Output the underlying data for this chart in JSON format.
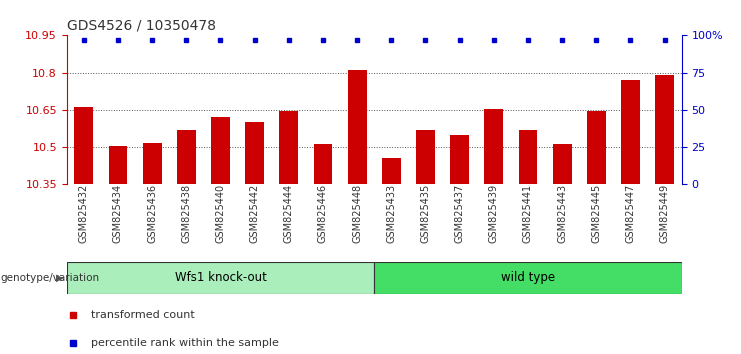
{
  "title": "GDS4526 / 10350478",
  "categories": [
    "GSM825432",
    "GSM825434",
    "GSM825436",
    "GSM825438",
    "GSM825440",
    "GSM825442",
    "GSM825444",
    "GSM825446",
    "GSM825448",
    "GSM825433",
    "GSM825435",
    "GSM825437",
    "GSM825439",
    "GSM825441",
    "GSM825443",
    "GSM825445",
    "GSM825447",
    "GSM825449"
  ],
  "bar_values": [
    10.66,
    10.505,
    10.515,
    10.57,
    10.62,
    10.6,
    10.645,
    10.51,
    10.81,
    10.455,
    10.57,
    10.55,
    10.655,
    10.57,
    10.51,
    10.645,
    10.77,
    10.79
  ],
  "percentile_values": [
    97,
    97,
    97,
    97,
    97,
    97,
    97,
    97,
    97,
    97,
    97,
    97,
    97,
    97,
    97,
    97,
    97,
    97
  ],
  "bar_color": "#cc0000",
  "percentile_color": "#0000cc",
  "ylim_left": [
    10.35,
    10.95
  ],
  "ylim_right": [
    0,
    100
  ],
  "yticks_left": [
    10.35,
    10.5,
    10.65,
    10.8,
    10.95
  ],
  "yticks_right": [
    0,
    25,
    50,
    75,
    100
  ],
  "ytick_labels_right": [
    "0",
    "25",
    "50",
    "75",
    "100%"
  ],
  "group1_label": "Wfs1 knock-out",
  "group2_label": "wild type",
  "group1_count": 9,
  "group2_count": 9,
  "genotype_label": "genotype/variation",
  "legend_bar_label": "transformed count",
  "legend_pct_label": "percentile rank within the sample",
  "group1_color": "#aaeebb",
  "group2_color": "#44dd66",
  "bg_color": "#ffffff",
  "dotted_line_color": "#555555",
  "title_fontsize": 10,
  "tick_fontsize": 8,
  "bar_width": 0.55
}
